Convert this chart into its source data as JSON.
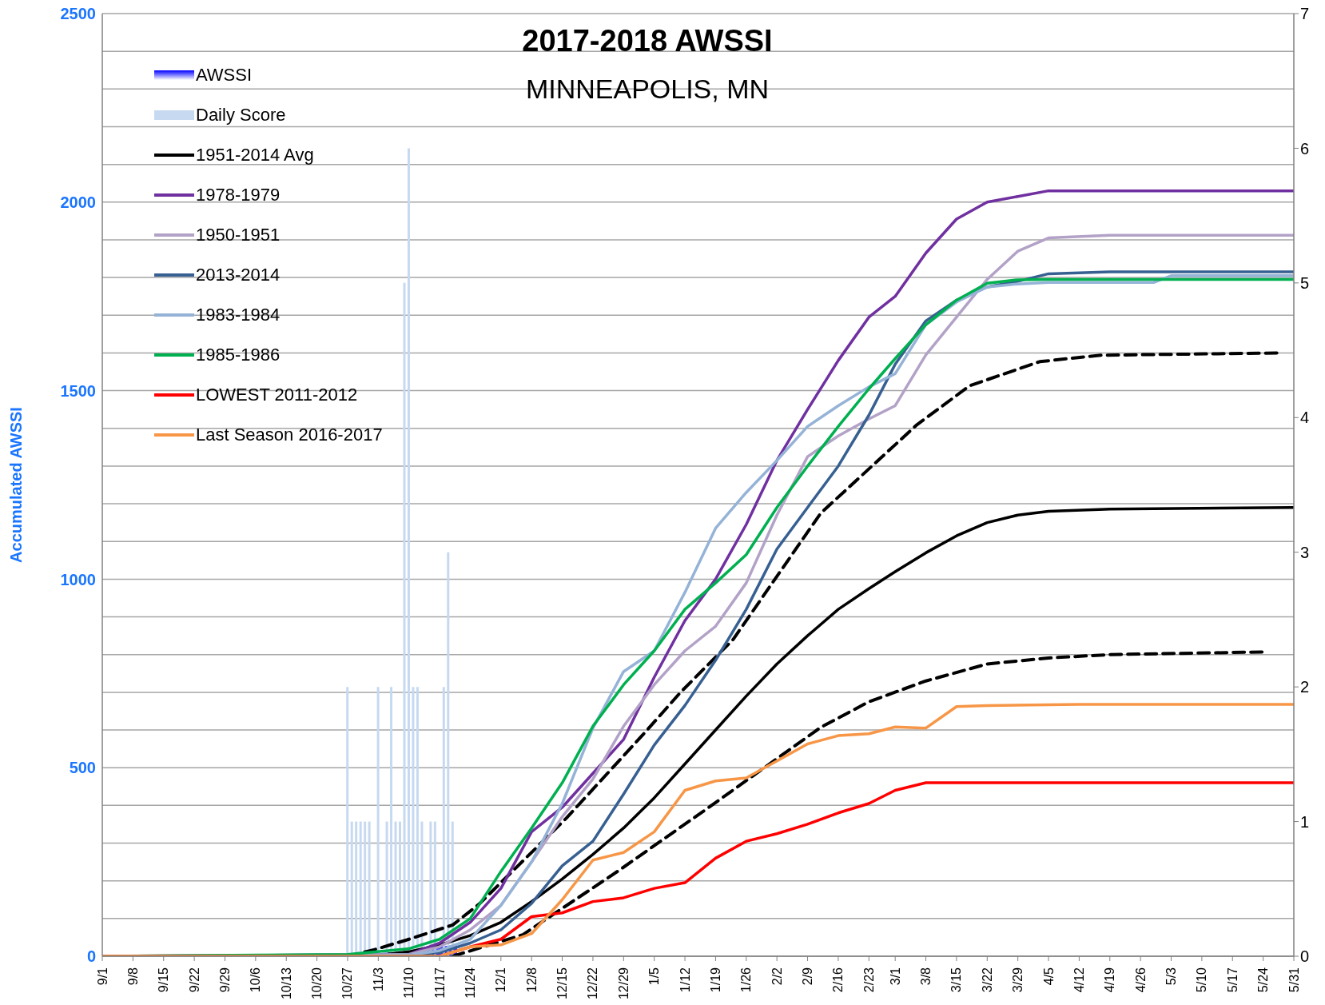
{
  "chart_data": {
    "type": "line",
    "title": "2017-2018 AWSSI",
    "subtitle": "MINNEAPOLIS, MN",
    "ylabel": "Accumulated AWSSI",
    "xlim": [
      "2017-09-01",
      "2018-05-31"
    ],
    "xticks": [
      {
        "value": "2017-09-01",
        "label": "9/1"
      },
      {
        "value": "2017-09-08",
        "label": "9/8"
      },
      {
        "value": "2017-09-15",
        "label": "9/15"
      },
      {
        "value": "2017-09-22",
        "label": "9/22"
      },
      {
        "value": "2017-09-29",
        "label": "9/29"
      },
      {
        "value": "2017-10-06",
        "label": "10/6"
      },
      {
        "value": "2017-10-13",
        "label": "10/13"
      },
      {
        "value": "2017-10-20",
        "label": "10/20"
      },
      {
        "value": "2017-10-27",
        "label": "10/27"
      },
      {
        "value": "2017-11-03",
        "label": "11/3"
      },
      {
        "value": "2017-11-10",
        "label": "11/10"
      },
      {
        "value": "2017-11-17",
        "label": "11/17"
      },
      {
        "value": "2017-11-24",
        "label": "11/24"
      },
      {
        "value": "2017-12-01",
        "label": "12/1"
      },
      {
        "value": "2017-12-08",
        "label": "12/8"
      },
      {
        "value": "2017-12-15",
        "label": "12/15"
      },
      {
        "value": "2017-12-22",
        "label": "12/22"
      },
      {
        "value": "2017-12-29",
        "label": "12/29"
      },
      {
        "value": "2018-01-05",
        "label": "1/5"
      },
      {
        "value": "2018-01-12",
        "label": "1/12"
      },
      {
        "value": "2018-01-19",
        "label": "1/19"
      },
      {
        "value": "2018-01-26",
        "label": "1/26"
      },
      {
        "value": "2018-02-02",
        "label": "2/2"
      },
      {
        "value": "2018-02-09",
        "label": "2/9"
      },
      {
        "value": "2018-02-16",
        "label": "2/16"
      },
      {
        "value": "2018-02-23",
        "label": "2/23"
      },
      {
        "value": "2018-03-01",
        "label": "3/1"
      },
      {
        "value": "2018-03-08",
        "label": "3/8"
      },
      {
        "value": "2018-03-15",
        "label": "3/15"
      },
      {
        "value": "2018-03-22",
        "label": "3/22"
      },
      {
        "value": "2018-03-29",
        "label": "3/29"
      },
      {
        "value": "2018-04-05",
        "label": "4/5"
      },
      {
        "value": "2018-04-12",
        "label": "4/12"
      },
      {
        "value": "2018-04-19",
        "label": "4/19"
      },
      {
        "value": "2018-04-26",
        "label": "4/26"
      },
      {
        "value": "2018-05-03",
        "label": "5/3"
      },
      {
        "value": "2018-05-10",
        "label": "5/10"
      },
      {
        "value": "2018-05-17",
        "label": "5/17"
      },
      {
        "value": "2018-05-24",
        "label": "5/24"
      },
      {
        "value": "2018-05-31",
        "label": "5/31"
      }
    ],
    "ylim": [
      0,
      2500
    ],
    "yticks": [
      0,
      {
        "value": 100,
        "label": null
      },
      {
        "value": 200,
        "label": null
      },
      {
        "value": 300,
        "label": null
      },
      {
        "value": 400,
        "label": null
      },
      500,
      {
        "value": 600,
        "label": null
      },
      {
        "value": 700,
        "label": null
      },
      {
        "value": 800,
        "label": null
      },
      {
        "value": 900,
        "label": null
      },
      1000,
      {
        "value": 1100,
        "label": null
      },
      {
        "value": 1200,
        "label": null
      },
      {
        "value": 1300,
        "label": null
      },
      {
        "value": 1400,
        "label": null
      },
      1500,
      {
        "value": 1600,
        "label": null
      },
      {
        "value": 1700,
        "label": null
      },
      {
        "value": 1800,
        "label": null
      },
      {
        "value": 1900,
        "label": null
      },
      2000,
      {
        "value": 2100,
        "label": null
      },
      {
        "value": 2200,
        "label": null
      },
      {
        "value": 2300,
        "label": null
      },
      {
        "value": 2400,
        "label": null
      },
      2500
    ],
    "y2lim": [
      0,
      7
    ],
    "y2ticks": [
      0,
      1,
      2,
      3,
      4,
      5,
      6,
      7
    ],
    "grid": "y",
    "legend": "top left",
    "series": [
      {
        "name": "Daily Score",
        "type": "bar",
        "axis": "y2",
        "color": "#c6d9f1",
        "x": [
          "2017-10-27",
          "2017-10-28",
          "2017-10-29",
          "2017-10-30",
          "2017-10-31",
          "2017-11-01",
          "2017-11-03",
          "2017-11-05",
          "2017-11-06",
          "2017-11-07",
          "2017-11-08",
          "2017-11-09",
          "2017-11-10",
          "2017-11-11",
          "2017-11-12",
          "2017-11-13",
          "2017-11-15",
          "2017-11-16",
          "2017-11-18",
          "2017-11-19",
          "2017-11-20"
        ],
        "values": [
          2,
          1,
          1,
          1,
          1,
          1,
          2,
          1,
          2,
          1,
          1,
          5,
          6,
          2,
          2,
          1,
          1,
          1,
          2,
          3,
          1
        ]
      },
      {
        "type": "line",
        "color": "#000000",
        "line_style": "dashed",
        "x": [
          "2017-10-27",
          "2017-11-02",
          "2017-11-10",
          "2017-11-20",
          "2017-11-26",
          "2017-12-16",
          "2018-01-03",
          "2018-01-11",
          "2018-01-23",
          "2018-02-12",
          "2018-03-06",
          "2018-03-18",
          "2018-04-03",
          "2018-04-17",
          "2018-05-28"
        ],
        "values": [
          0,
          17,
          45,
          83,
          138,
          367,
          595,
          700,
          840,
          1175,
          1410,
          1513,
          1577,
          1594,
          1600
        ]
      },
      {
        "type": "line",
        "color": "#000000",
        "line_style": "dashed",
        "x": [
          "2017-11-20",
          "2017-12-06",
          "2017-12-28",
          "2018-01-17",
          "2018-02-12",
          "2018-02-23",
          "2018-03-08",
          "2018-03-22",
          "2018-04-05",
          "2018-04-19",
          "2018-05-24"
        ],
        "values": [
          0,
          57,
          228,
          391,
          607,
          675,
          730,
          775,
          791,
          800,
          807
        ]
      },
      {
        "name": "1951-2014 Avg",
        "color": "#000000",
        "x": [
          "2017-09-01",
          "2017-11-01",
          "2017-11-10",
          "2017-11-17",
          "2017-11-24",
          "2017-12-01",
          "2017-12-08",
          "2017-12-15",
          "2017-12-22",
          "2017-12-29",
          "2018-01-05",
          "2018-01-12",
          "2018-01-19",
          "2018-01-26",
          "2018-02-02",
          "2018-02-09",
          "2018-02-16",
          "2018-02-23",
          "2018-03-01",
          "2018-03-08",
          "2018-03-15",
          "2018-03-22",
          "2018-03-29",
          "2018-04-05",
          "2018-04-19",
          "2018-05-31"
        ],
        "values": [
          0,
          0,
          12,
          30,
          55,
          90,
          145,
          205,
          270,
          340,
          420,
          510,
          600,
          690,
          775,
          850,
          920,
          975,
          1020,
          1070,
          1115,
          1150,
          1170,
          1180,
          1186,
          1190
        ]
      },
      {
        "name": "1978-1979",
        "color": "#7030a0",
        "x": [
          "2017-09-01",
          "2017-11-10",
          "2017-11-17",
          "2017-11-24",
          "2017-12-01",
          "2017-12-08",
          "2017-12-15",
          "2017-12-22",
          "2017-12-29",
          "2018-01-05",
          "2018-01-12",
          "2018-01-19",
          "2018-01-26",
          "2018-02-02",
          "2018-02-09",
          "2018-02-16",
          "2018-02-23",
          "2018-03-01",
          "2018-03-08",
          "2018-03-15",
          "2018-03-22",
          "2018-03-29",
          "2018-04-05",
          "2018-05-31"
        ],
        "values": [
          0,
          5,
          35,
          90,
          180,
          330,
          395,
          485,
          575,
          740,
          890,
          1000,
          1145,
          1315,
          1450,
          1580,
          1695,
          1750,
          1865,
          1955,
          2000,
          2015,
          2030,
          2030
        ]
      },
      {
        "name": "1950-1951",
        "color": "#b3a2c7",
        "x": [
          "2017-09-01",
          "2017-11-10",
          "2017-11-17",
          "2017-11-24",
          "2017-12-01",
          "2017-12-08",
          "2017-12-15",
          "2017-12-22",
          "2017-12-29",
          "2018-01-05",
          "2018-01-12",
          "2018-01-19",
          "2018-01-26",
          "2018-02-02",
          "2018-02-09",
          "2018-02-16",
          "2018-02-23",
          "2018-03-01",
          "2018-03-08",
          "2018-03-15",
          "2018-03-22",
          "2018-03-29",
          "2018-04-05",
          "2018-04-19",
          "2018-05-31"
        ],
        "values": [
          0,
          5,
          25,
          70,
          135,
          250,
          370,
          470,
          610,
          720,
          810,
          875,
          990,
          1170,
          1325,
          1380,
          1425,
          1460,
          1595,
          1695,
          1795,
          1870,
          1905,
          1912,
          1912
        ]
      },
      {
        "name": "2013-2014",
        "color": "#376092",
        "x": [
          "2017-09-01",
          "2017-11-10",
          "2017-11-17",
          "2017-11-24",
          "2017-12-01",
          "2017-12-08",
          "2017-12-15",
          "2017-12-22",
          "2017-12-29",
          "2018-01-05",
          "2018-01-12",
          "2018-01-19",
          "2018-01-26",
          "2018-02-02",
          "2018-02-09",
          "2018-02-16",
          "2018-02-23",
          "2018-03-01",
          "2018-03-08",
          "2018-03-15",
          "2018-03-22",
          "2018-03-29",
          "2018-04-05",
          "2018-04-19",
          "2018-05-31"
        ],
        "values": [
          0,
          3,
          10,
          35,
          70,
          140,
          240,
          305,
          430,
          560,
          665,
          785,
          920,
          1080,
          1190,
          1300,
          1435,
          1570,
          1685,
          1740,
          1775,
          1790,
          1810,
          1815,
          1815
        ]
      },
      {
        "name": "1983-1984",
        "color": "#95b3d7",
        "x": [
          "2017-09-01",
          "2017-11-10",
          "2017-11-17",
          "2017-11-24",
          "2017-12-01",
          "2017-12-08",
          "2017-12-15",
          "2017-12-22",
          "2017-12-29",
          "2018-01-05",
          "2018-01-12",
          "2018-01-19",
          "2018-01-26",
          "2018-02-02",
          "2018-02-09",
          "2018-02-16",
          "2018-02-23",
          "2018-03-01",
          "2018-03-08",
          "2018-03-15",
          "2018-03-22",
          "2018-03-29",
          "2018-04-05",
          "2018-04-29",
          "2018-05-03",
          "2018-05-31"
        ],
        "values": [
          0,
          3,
          15,
          45,
          135,
          250,
          405,
          605,
          755,
          810,
          965,
          1135,
          1230,
          1315,
          1405,
          1460,
          1510,
          1545,
          1675,
          1735,
          1775,
          1783,
          1787,
          1787,
          1805,
          1805
        ]
      },
      {
        "name": "1985-1986",
        "color": "#00b050",
        "x": [
          "2017-09-01",
          "2017-10-27",
          "2017-11-10",
          "2017-11-17",
          "2017-11-24",
          "2017-12-01",
          "2017-12-08",
          "2017-12-15",
          "2017-12-22",
          "2017-12-29",
          "2018-01-05",
          "2018-01-12",
          "2018-01-19",
          "2018-01-26",
          "2018-02-02",
          "2018-02-09",
          "2018-02-16",
          "2018-02-23",
          "2018-03-01",
          "2018-03-08",
          "2018-03-15",
          "2018-03-22",
          "2018-03-29",
          "2018-04-05",
          "2018-05-31"
        ],
        "values": [
          0,
          5,
          20,
          45,
          100,
          225,
          340,
          460,
          610,
          720,
          810,
          920,
          990,
          1065,
          1190,
          1300,
          1405,
          1505,
          1585,
          1675,
          1740,
          1785,
          1794,
          1795,
          1795
        ]
      },
      {
        "name": "LOWEST 2011-2012",
        "color": "#ff0000",
        "x": [
          "2017-09-01",
          "2017-11-17",
          "2017-11-24",
          "2017-12-01",
          "2017-12-08",
          "2017-12-15",
          "2017-12-22",
          "2017-12-29",
          "2018-01-05",
          "2018-01-12",
          "2018-01-19",
          "2018-01-26",
          "2018-02-02",
          "2018-02-09",
          "2018-02-16",
          "2018-02-23",
          "2018-03-01",
          "2018-03-08",
          "2018-05-31"
        ],
        "values": [
          0,
          0,
          25,
          45,
          105,
          115,
          145,
          155,
          180,
          195,
          260,
          305,
          325,
          350,
          380,
          405,
          440,
          460,
          460
        ]
      },
      {
        "name": "Last Season 2016-2017",
        "color": "#f79646",
        "x": [
          "2017-09-01",
          "2017-11-17",
          "2017-11-24",
          "2017-12-01",
          "2017-12-08",
          "2017-12-15",
          "2017-12-22",
          "2017-12-29",
          "2018-01-05",
          "2018-01-12",
          "2018-01-19",
          "2018-01-26",
          "2018-02-02",
          "2018-02-09",
          "2018-02-16",
          "2018-02-23",
          "2018-03-01",
          "2018-03-08",
          "2018-03-15",
          "2018-03-22",
          "2018-04-12",
          "2018-05-31"
        ],
        "values": [
          0,
          0,
          25,
          30,
          60,
          150,
          255,
          275,
          330,
          440,
          465,
          473,
          518,
          563,
          585,
          590,
          608,
          605,
          662,
          665,
          668,
          668
        ]
      },
      {
        "name": "AWSSI",
        "type": "area",
        "color": "#0000ff",
        "x": [
          "2017-09-01",
          "2017-10-27",
          "2017-11-10",
          "2017-11-21"
        ],
        "values": [
          0,
          2,
          12,
          30
        ]
      }
    ]
  }
}
